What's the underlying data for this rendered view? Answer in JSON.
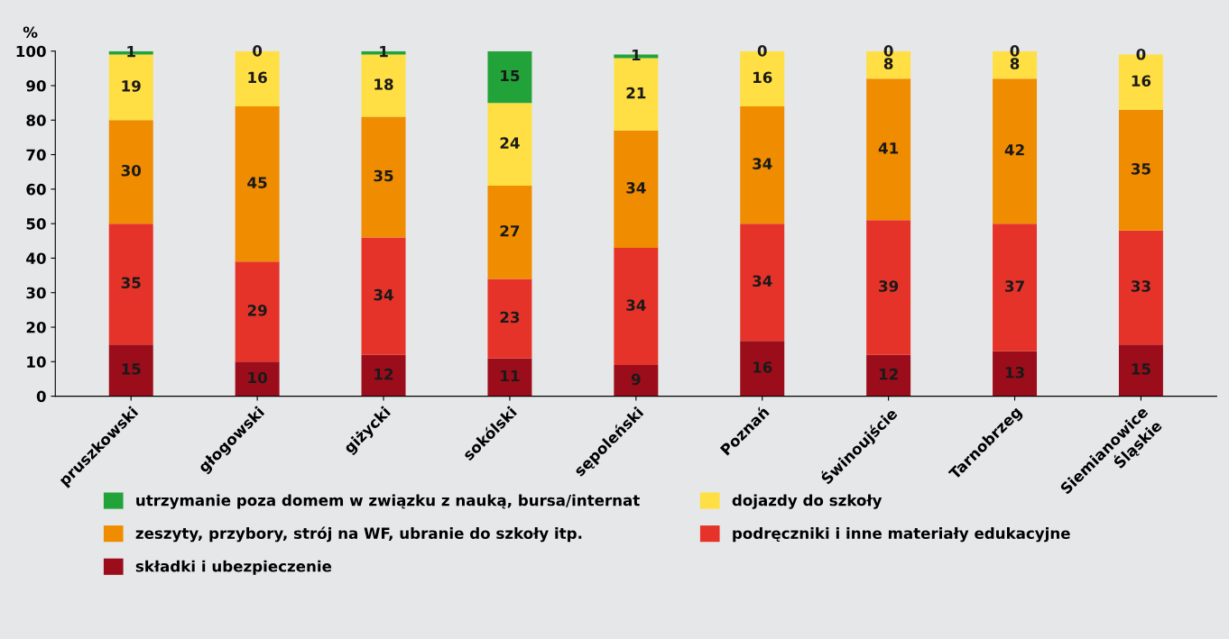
{
  "chart_data": {
    "type": "bar",
    "stacked": true,
    "ylabel": "%",
    "categories": [
      "pruszkowski",
      "głogowski",
      "giżycki",
      "sokólski",
      "sępoleński",
      "Poznań",
      "Świnoujście",
      "Tarnobrzeg",
      "Siemianowice\nŚląskie"
    ],
    "series": [
      {
        "name": "składki i ubezpieczenie",
        "color": "#9b0d1a",
        "values": [
          15,
          10,
          12,
          11,
          9,
          16,
          12,
          13,
          15
        ]
      },
      {
        "name": "podręczniki i inne materiały edukacyjne",
        "color": "#e63329",
        "values": [
          35,
          29,
          34,
          23,
          34,
          34,
          39,
          37,
          33
        ]
      },
      {
        "name": "zeszyty, przybory, strój na WF, ubranie do szkoły itp.",
        "color": "#f08c00",
        "values": [
          30,
          45,
          35,
          27,
          34,
          34,
          41,
          42,
          35
        ]
      },
      {
        "name": "dojazdy do szkoły",
        "color": "#ffdf43",
        "values": [
          19,
          16,
          18,
          24,
          21,
          16,
          8,
          8,
          16
        ]
      },
      {
        "name": "utrzymanie poza domem w związku z nauką, bursa/internat",
        "color": "#22a33a",
        "values": [
          1,
          0,
          1,
          15,
          1,
          0,
          0,
          0,
          0
        ]
      }
    ],
    "ylim": [
      0,
      100
    ],
    "yticks": [
      0,
      10,
      20,
      30,
      40,
      50,
      60,
      70,
      80,
      90,
      100
    ],
    "data_labels": true,
    "grid": false,
    "legend": "bottom"
  }
}
